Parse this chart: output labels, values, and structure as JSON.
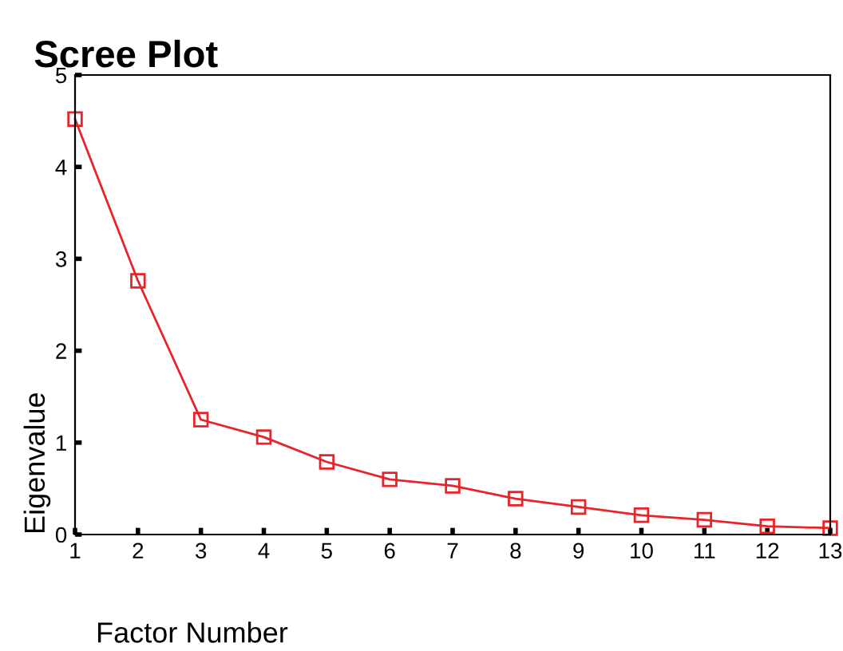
{
  "chart_data": {
    "type": "line",
    "title": "Scree Plot",
    "xlabel": "Factor Number",
    "ylabel": "Eigenvalue",
    "x": [
      1,
      2,
      3,
      4,
      5,
      6,
      7,
      8,
      9,
      10,
      11,
      12,
      13
    ],
    "series": [
      {
        "color": "#e8232a",
        "values": [
          4.52,
          2.76,
          1.25,
          1.06,
          0.79,
          0.6,
          0.53,
          0.39,
          0.3,
          0.21,
          0.16,
          0.09,
          0.07
        ]
      }
    ],
    "xlim": [
      1,
      13
    ],
    "xticks": [
      1,
      2,
      3,
      4,
      5,
      6,
      7,
      8,
      9,
      10,
      11,
      12,
      13
    ],
    "ylim": [
      0,
      5
    ],
    "yticks": [
      0,
      1,
      2,
      3,
      4,
      5
    ],
    "marker": "square",
    "line_style": "solid",
    "grid": false,
    "legend": false
  }
}
